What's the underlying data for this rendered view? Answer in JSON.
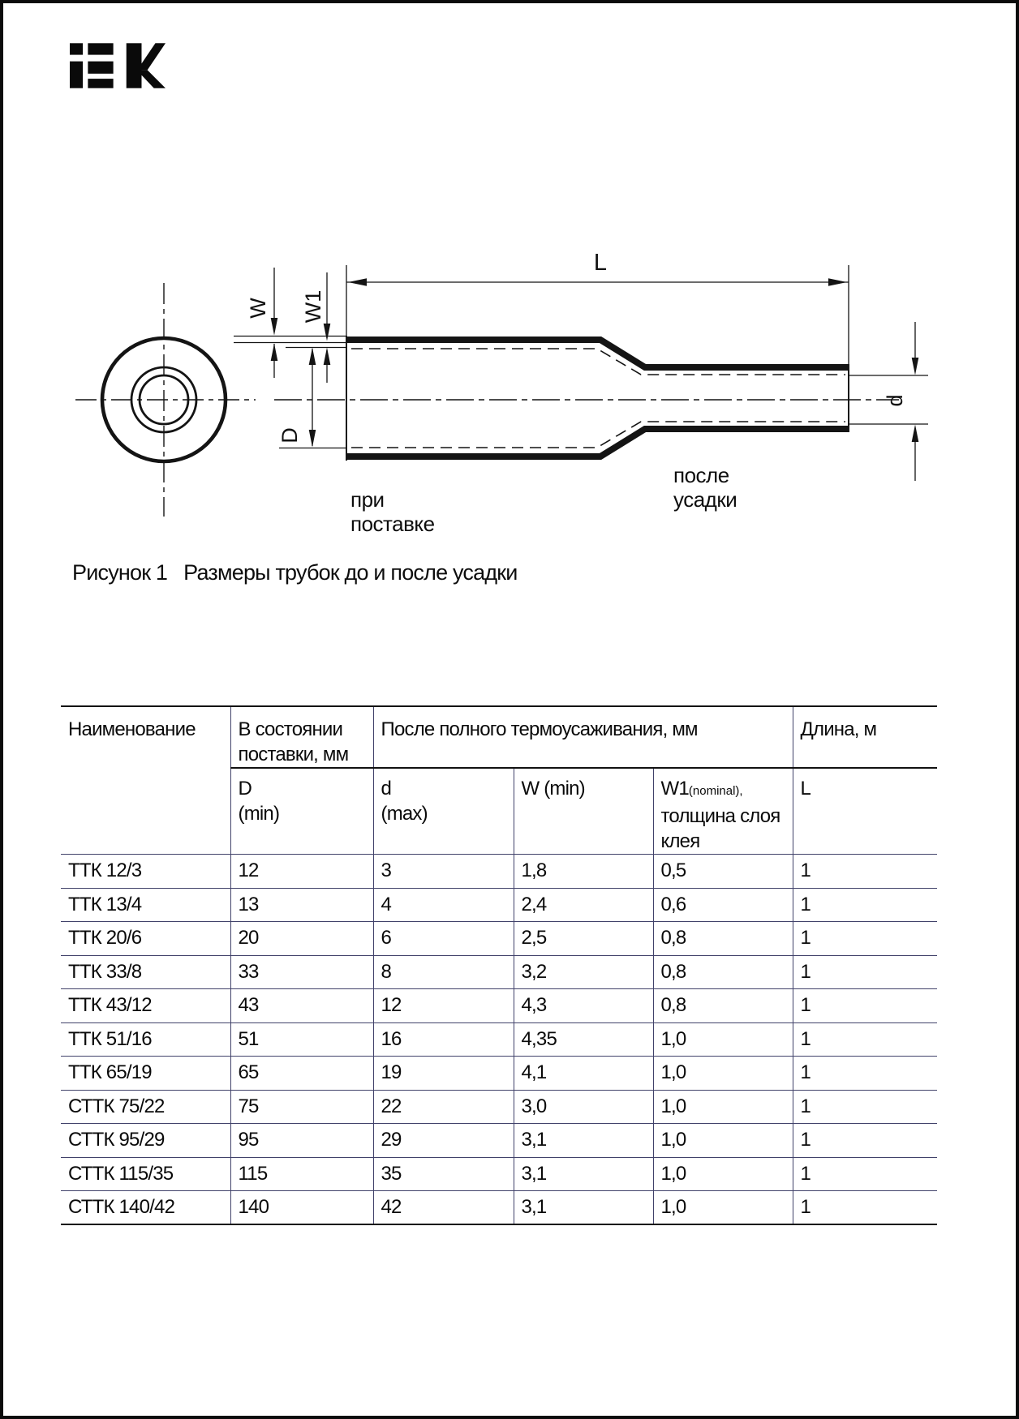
{
  "logo": {
    "text": "iEK"
  },
  "diagram": {
    "labels": {
      "length": "L",
      "wall": "W",
      "adhesive": "W1",
      "diameter_before": "D",
      "diameter_after": "d"
    },
    "state_before": {
      "line1": "при",
      "line2": "поставке"
    },
    "state_after": {
      "line1": "после",
      "line2": "усадки"
    }
  },
  "caption": {
    "label": "Рисунок 1",
    "text": "Размеры трубок до и после усадки"
  },
  "table": {
    "header": {
      "name": "Наименование",
      "delivery_line1": "В состоянии",
      "delivery_line2": "поставки, мм",
      "after_shrink": "После полного термоусаживания, мм",
      "length": "Длина, м",
      "d_min_line1": "D",
      "d_min_line2": "(min)",
      "d_max_line1": "d",
      "d_max_line2": "(max)",
      "w_min": "W (min)",
      "w1_symbol": "W1",
      "w1_note": "(nominal),",
      "w1_line2": "толщина слоя",
      "w1_line3": "клея",
      "length_symbol": "L"
    },
    "rows": [
      {
        "name": "ТТК 12/3",
        "d_min": "12",
        "d_max": "3",
        "w_min": "1,8",
        "w1": "0,5",
        "l": "1"
      },
      {
        "name": "ТТК 13/4",
        "d_min": "13",
        "d_max": "4",
        "w_min": "2,4",
        "w1": "0,6",
        "l": "1"
      },
      {
        "name": "ТТК 20/6",
        "d_min": "20",
        "d_max": "6",
        "w_min": "2,5",
        "w1": "0,8",
        "l": "1"
      },
      {
        "name": "ТТК 33/8",
        "d_min": "33",
        "d_max": "8",
        "w_min": "3,2",
        "w1": "0,8",
        "l": "1"
      },
      {
        "name": "ТТК 43/12",
        "d_min": "43",
        "d_max": "12",
        "w_min": "4,3",
        "w1": "0,8",
        "l": "1"
      },
      {
        "name": "ТТК 51/16",
        "d_min": "51",
        "d_max": "16",
        "w_min": "4,35",
        "w1": "1,0",
        "l": "1"
      },
      {
        "name": "ТТК 65/19",
        "d_min": "65",
        "d_max": "19",
        "w_min": "4,1",
        "w1": "1,0",
        "l": "1"
      },
      {
        "name": "СТТК 75/22",
        "d_min": "75",
        "d_max": "22",
        "w_min": "3,0",
        "w1": "1,0",
        "l": "1"
      },
      {
        "name": "СТТК 95/29",
        "d_min": "95",
        "d_max": "29",
        "w_min": "3,1",
        "w1": "1,0",
        "l": "1"
      },
      {
        "name": "СТТК 115/35",
        "d_min": "115",
        "d_max": "35",
        "w_min": "3,1",
        "w1": "1,0",
        "l": "1"
      },
      {
        "name": "СТТК 140/42",
        "d_min": "140",
        "d_max": "42",
        "w_min": "3,1",
        "w1": "1,0",
        "l": "1"
      }
    ]
  }
}
